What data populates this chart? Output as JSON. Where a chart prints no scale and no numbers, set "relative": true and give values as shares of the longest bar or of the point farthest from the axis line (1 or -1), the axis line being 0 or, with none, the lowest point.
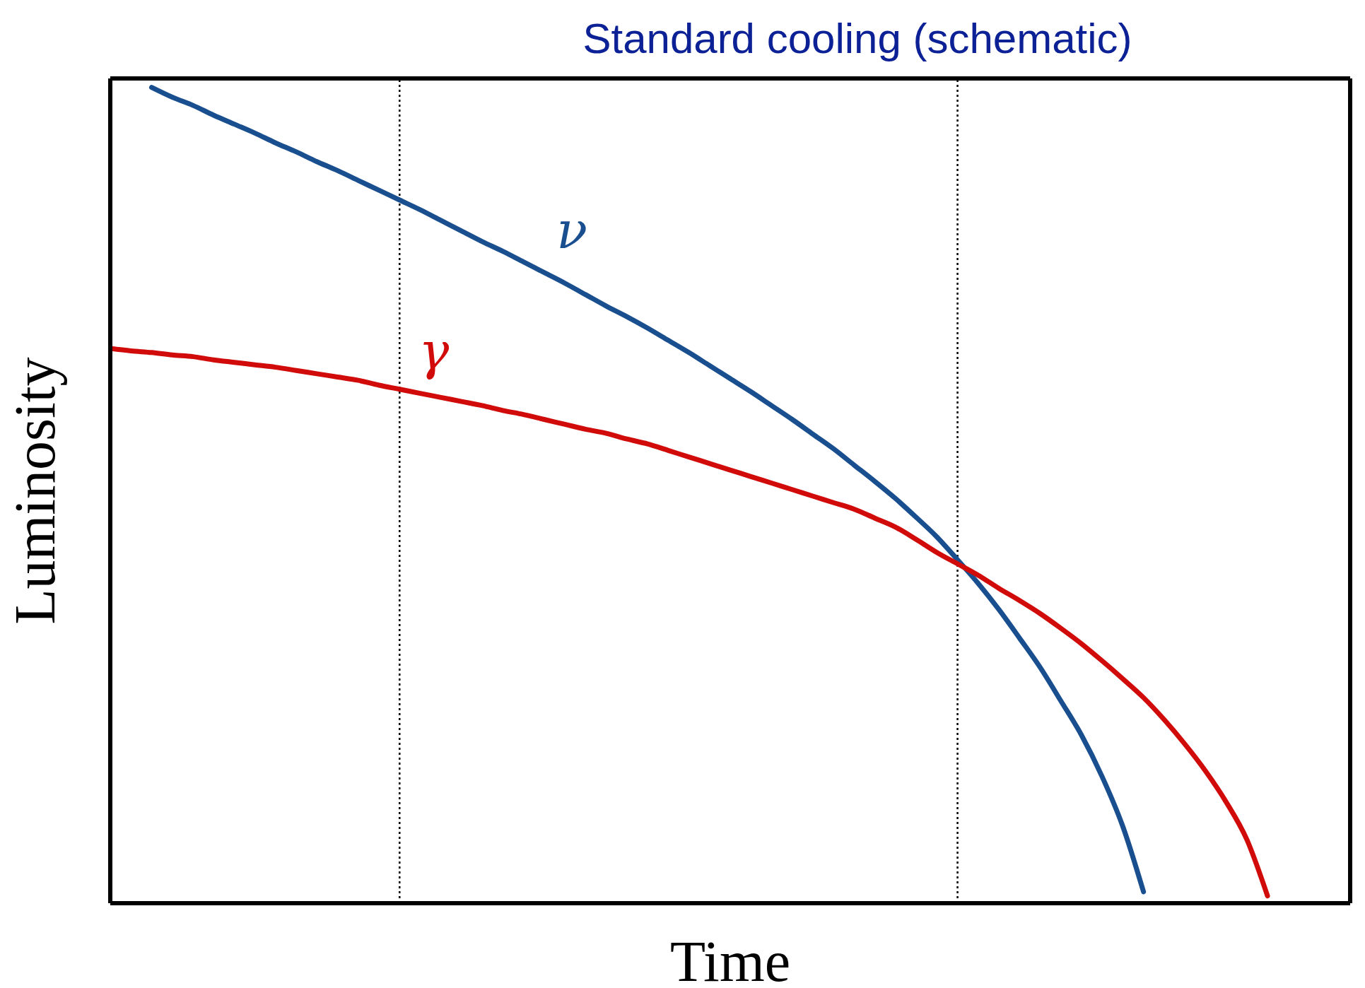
{
  "chart_data": {
    "type": "line",
    "title": "Standard cooling (schematic)",
    "xlabel": "Time",
    "ylabel": "Luminosity",
    "relative": true,
    "grid": false,
    "legend": false,
    "marker": "none",
    "categories": [
      null,
      null,
      null,
      null,
      null,
      null,
      null,
      null,
      null,
      null,
      null,
      null,
      null,
      null,
      null,
      null,
      null,
      null,
      null,
      null,
      null,
      null,
      null,
      null,
      null,
      null,
      null,
      null,
      null,
      null,
      null,
      null,
      null,
      null,
      null,
      null,
      null,
      null,
      null,
      null,
      null,
      null,
      null,
      null,
      null,
      null,
      null,
      null,
      null,
      null,
      null,
      null,
      null,
      null,
      null,
      null,
      null,
      null,
      null,
      null,
      null
    ],
    "series": [
      {
        "name": "ν",
        "color": "#1a4f8f",
        "values": [
          null,
          null,
          1.0,
          0.988,
          0.978,
          0.966,
          0.955,
          0.944,
          0.932,
          0.921,
          0.909,
          0.898,
          0.886,
          0.874,
          0.862,
          0.85,
          0.837,
          0.824,
          0.811,
          0.799,
          0.786,
          0.773,
          0.76,
          0.746,
          0.732,
          0.719,
          0.705,
          0.69,
          0.675,
          0.659,
          0.643,
          0.627,
          0.61,
          0.593,
          0.575,
          0.557,
          0.537,
          0.517,
          0.496,
          0.473,
          0.449,
          0.421,
          0.392,
          0.36,
          0.325,
          0.289,
          0.248,
          0.206,
          0.155,
          0.094,
          0.014,
          null,
          null,
          null,
          null,
          null,
          null,
          null,
          null,
          null,
          null
        ]
      },
      {
        "name": "γ",
        "color": "#d10a0a",
        "values": [
          0.68,
          0.677,
          0.675,
          0.672,
          0.67,
          0.666,
          0.663,
          0.66,
          0.657,
          0.653,
          0.649,
          0.645,
          0.641,
          0.635,
          0.63,
          0.625,
          0.62,
          0.615,
          0.61,
          0.604,
          0.599,
          0.593,
          0.587,
          0.581,
          0.576,
          0.569,
          0.563,
          0.555,
          0.547,
          0.539,
          0.531,
          0.523,
          0.515,
          0.507,
          0.499,
          0.491,
          0.483,
          0.472,
          0.461,
          0.446,
          0.43,
          0.416,
          0.402,
          0.386,
          0.371,
          0.355,
          0.337,
          0.318,
          0.297,
          0.275,
          0.252,
          0.225,
          0.195,
          0.162,
          0.124,
          0.078,
          0.009,
          null,
          null,
          null,
          null
        ]
      }
    ]
  }
}
